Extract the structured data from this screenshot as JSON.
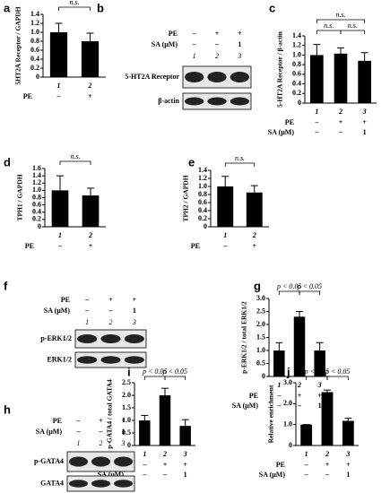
{
  "chart_data": [
    {
      "label": "a",
      "type": "bar",
      "ylabel": "5HT2A Receptor / GAPDH",
      "categories": [
        "1",
        "2"
      ],
      "values": [
        1.0,
        0.8
      ],
      "errors": [
        0.2,
        0.18
      ],
      "color": "#000000",
      "ylim": [
        0,
        1.4
      ],
      "yticks": [
        0,
        0.2,
        0.4,
        0.6,
        0.8,
        {
          "value": 1,
          "label": "1.0"
        },
        1.2,
        1.4
      ],
      "conditions": [
        {
          "name": "PE",
          "values": [
            "–",
            "+"
          ]
        }
      ],
      "annotations": [
        "n.s."
      ]
    },
    {
      "label": "c",
      "type": "bar",
      "ylabel": "5-HT2A Receptor / β-actin",
      "categories": [
        "1",
        "2",
        "3"
      ],
      "values": [
        1.0,
        1.03,
        0.88
      ],
      "errors": [
        0.22,
        0.12,
        0.17
      ],
      "color": "#000000",
      "ylim": [
        0,
        1.4
      ],
      "yticks": [
        0,
        0.2,
        0.4,
        0.6,
        0.8,
        {
          "value": 1,
          "label": "1.0"
        },
        1.2,
        1.4
      ],
      "conditions": [
        {
          "name": "PE",
          "values": [
            "–",
            "+",
            "+"
          ]
        },
        {
          "name": "SA (μM)",
          "values": [
            "–",
            "–",
            "1"
          ]
        }
      ],
      "annotations": [
        "n.s.",
        "n.s.",
        "n.s."
      ]
    },
    {
      "label": "d",
      "type": "bar",
      "ylabel": "TPH1 / GAPDH",
      "categories": [
        "1",
        "2"
      ],
      "values": [
        1.0,
        0.86
      ],
      "errors": [
        0.4,
        0.2
      ],
      "color": "#000000",
      "ylim": [
        0,
        1.6
      ],
      "yticks": [
        0,
        0.2,
        0.4,
        0.6,
        0.8,
        {
          "value": 1,
          "label": "1.0"
        },
        1.2,
        1.4,
        1.6
      ],
      "conditions": [
        {
          "name": "PE",
          "values": [
            "–",
            "+"
          ]
        }
      ],
      "annotations": [
        "n.s."
      ]
    },
    {
      "label": "e",
      "type": "bar",
      "ylabel": "TPH2 / GAPDH",
      "categories": [
        "1",
        "2"
      ],
      "values": [
        1.0,
        0.85
      ],
      "errors": [
        0.25,
        0.17
      ],
      "color": "#000000",
      "ylim": [
        0,
        1.4
      ],
      "yticks": [
        0,
        0.2,
        0.4,
        0.6,
        0.8,
        {
          "value": 1,
          "label": "1.0"
        },
        1.2,
        1.4
      ],
      "conditions": [
        {
          "name": "PE",
          "values": [
            "–",
            "+"
          ]
        }
      ],
      "annotations": [
        "n.s."
      ]
    },
    {
      "label": "g",
      "type": "bar",
      "ylabel": "p-ERK1/2 / total ERK1/2",
      "categories": [
        "1",
        "2",
        "3"
      ],
      "values": [
        1.0,
        2.3,
        1.0
      ],
      "errors": [
        0.3,
        0.2,
        0.3
      ],
      "color": "#000000",
      "ylim": [
        0,
        3
      ],
      "yticks": [
        0,
        0.5,
        {
          "value": 1,
          "label": "1.0"
        },
        1.5,
        {
          "value": 2,
          "label": "2.0"
        },
        2.5,
        {
          "value": 3,
          "label": "3.0"
        }
      ],
      "conditions": [
        {
          "name": "PE",
          "values": [
            "–",
            "+",
            "+"
          ]
        },
        {
          "name": "SA (μM)",
          "values": [
            "–",
            "–",
            "1"
          ]
        }
      ],
      "annotations": [
        "p < 0.05",
        "p < 0.05"
      ]
    },
    {
      "label": "i",
      "type": "bar",
      "ylabel": "p-GATA4 / total GATA4",
      "categories": [
        "1",
        "2",
        "3"
      ],
      "values": [
        1.0,
        2.0,
        0.78
      ],
      "errors": [
        0.2,
        0.28,
        0.25
      ],
      "color": "#000000",
      "ylim": [
        0,
        2.5
      ],
      "yticks": [
        0,
        0.5,
        {
          "value": 1,
          "label": "1.0"
        },
        1.5,
        {
          "value": 2,
          "label": "2.0"
        },
        2.5
      ],
      "conditions": [
        {
          "name": "PE",
          "values": [
            "–",
            "+",
            "+"
          ]
        },
        {
          "name": "SA (μM)",
          "values": [
            "–",
            "–",
            "1"
          ]
        }
      ],
      "annotations": [
        "p < 0.05",
        "p < 0.05"
      ]
    },
    {
      "label": "j",
      "type": "bar",
      "ylabel": "Relative enrichment",
      "categories": [
        "1",
        "2",
        "3"
      ],
      "values": [
        1.0,
        2.55,
        1.18
      ],
      "errors": [
        0,
        0.1,
        0.12
      ],
      "color": "#000000",
      "ylim": [
        0,
        3
      ],
      "yticks": [
        0,
        {
          "value": 1,
          "label": "1.0"
        },
        {
          "value": 2,
          "label": "2.0"
        },
        {
          "value": 3,
          "label": "3.0"
        }
      ],
      "conditions": [
        {
          "name": "PE",
          "values": [
            "–",
            "+",
            "+"
          ]
        },
        {
          "name": "SA (μM)",
          "values": [
            "–",
            "–",
            "1"
          ]
        }
      ],
      "annotations": [
        "p < 0.05",
        "p < 0.05"
      ]
    }
  ],
  "blots": [
    {
      "label": "b",
      "conditions": [
        {
          "name": "PE",
          "values": [
            "–",
            "+",
            "+"
          ]
        },
        {
          "name": "SA (μM)",
          "values": [
            "–",
            "–",
            "1"
          ]
        }
      ],
      "lanes": [
        "1",
        "2",
        "3"
      ],
      "bands": [
        "5-HT2A Receptor",
        "β-actin"
      ]
    },
    {
      "label": "f",
      "conditions": [
        {
          "name": "PE",
          "values": [
            "–",
            "+",
            "+"
          ]
        },
        {
          "name": "SA (μM)",
          "values": [
            "–",
            "–",
            "1"
          ]
        }
      ],
      "lanes": [
        "1",
        "2",
        "3"
      ],
      "bands": [
        "p-ERK1/2",
        "ERK1/2"
      ]
    },
    {
      "label": "h",
      "conditions": [
        {
          "name": "PE",
          "values": [
            "–",
            "+",
            "+"
          ]
        },
        {
          "name": "SA (μM)",
          "values": [
            "–",
            "–",
            "1"
          ]
        }
      ],
      "lanes": [
        "1",
        "2",
        "3"
      ],
      "bands": [
        "p-GATA4",
        "GATA4"
      ]
    }
  ]
}
